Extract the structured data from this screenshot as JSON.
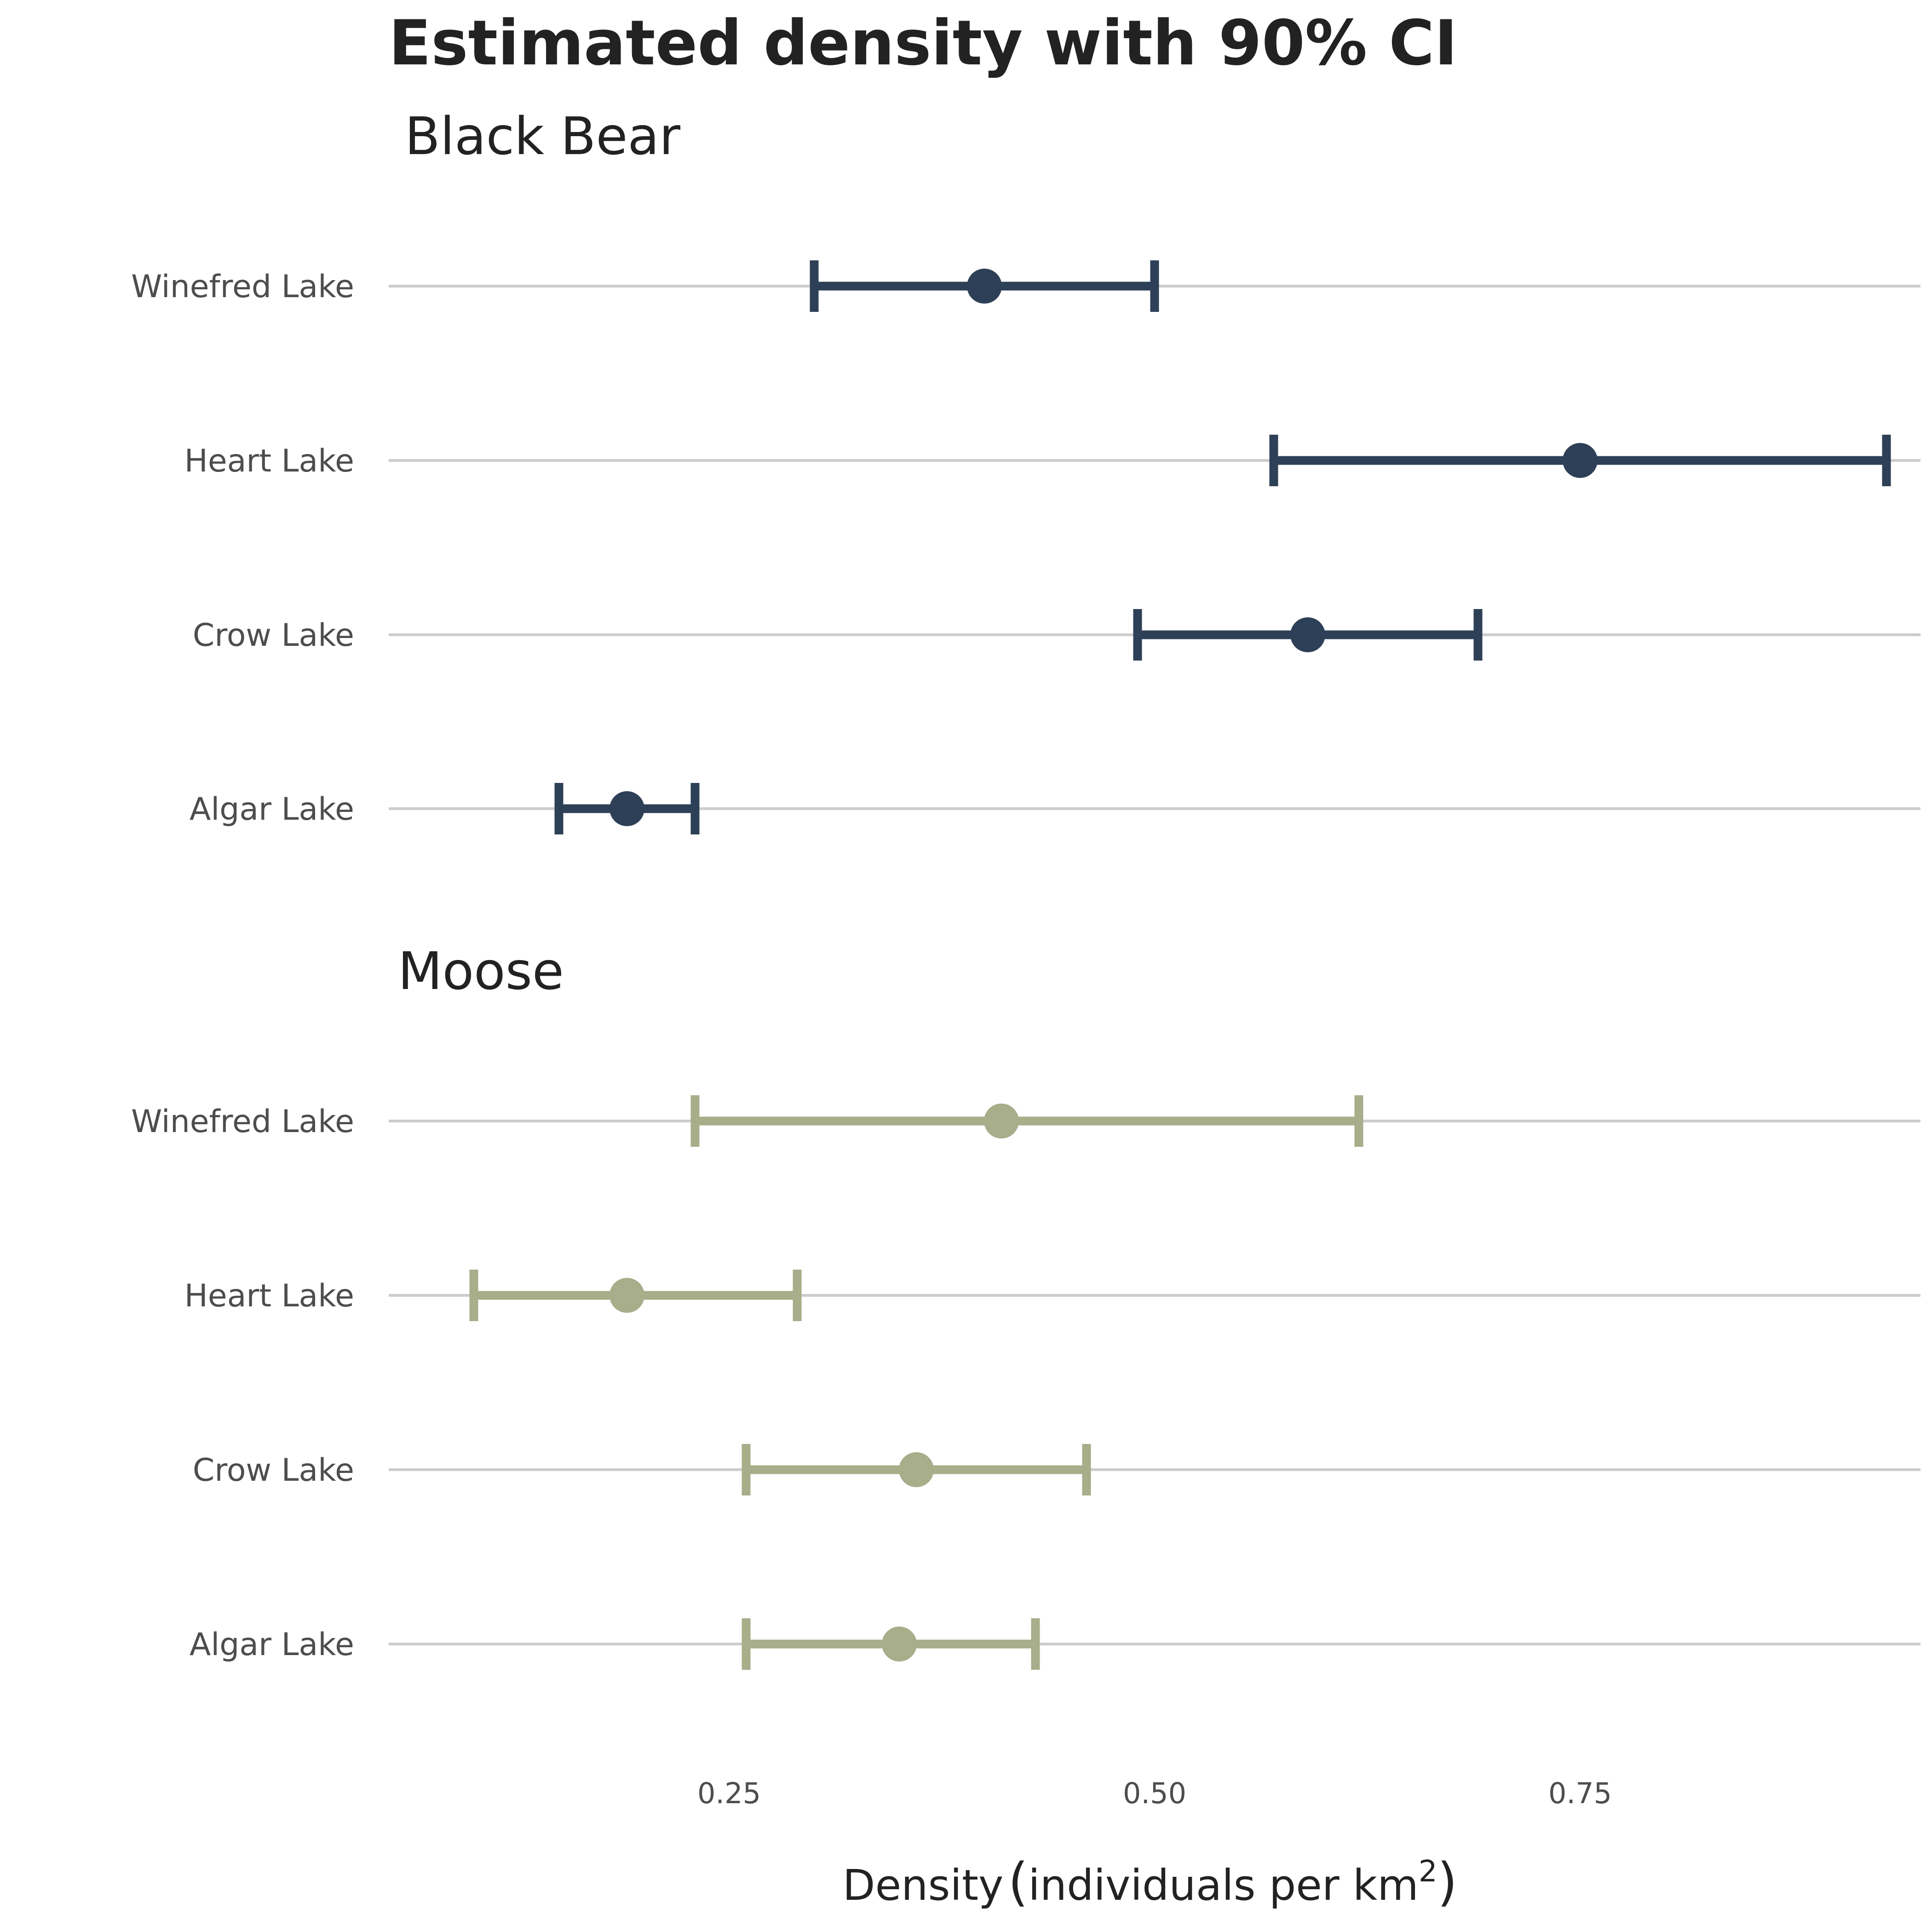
{
  "chart_data": {
    "type": "errorbar",
    "title": "Estimated density with 90% CI",
    "xlabel": "Density (individuals per km²)",
    "xlabel_parts": {
      "main": "Density",
      "paren_text": "individuals per km",
      "superscript": "2"
    },
    "ylabel": "",
    "xlim": [
      0.05,
      0.95
    ],
    "x_ticks": [
      0.25,
      0.5,
      0.75
    ],
    "x_tick_labels": [
      "0.25",
      "0.50",
      "0.75"
    ],
    "grid": "horizontal",
    "categories": [
      "Winefred Lake",
      "Heart Lake",
      "Crow Lake",
      "Algar Lake"
    ],
    "panels": [
      {
        "name": "Black Bear",
        "color": "#2e4057",
        "points": [
          {
            "category": "Winefred Lake",
            "estimate": 0.4,
            "lower": 0.3,
            "upper": 0.5
          },
          {
            "category": "Heart Lake",
            "estimate": 0.75,
            "lower": 0.57,
            "upper": 0.93
          },
          {
            "category": "Crow Lake",
            "estimate": 0.59,
            "lower": 0.49,
            "upper": 0.69
          },
          {
            "category": "Algar Lake",
            "estimate": 0.19,
            "lower": 0.15,
            "upper": 0.23
          }
        ]
      },
      {
        "name": "Moose",
        "color": "#a8ad8a",
        "points": [
          {
            "category": "Winefred Lake",
            "estimate": 0.41,
            "lower": 0.23,
            "upper": 0.62
          },
          {
            "category": "Heart Lake",
            "estimate": 0.19,
            "lower": 0.1,
            "upper": 0.29
          },
          {
            "category": "Crow Lake",
            "estimate": 0.36,
            "lower": 0.26,
            "upper": 0.46
          },
          {
            "category": "Algar Lake",
            "estimate": 0.35,
            "lower": 0.26,
            "upper": 0.43
          }
        ]
      }
    ]
  }
}
